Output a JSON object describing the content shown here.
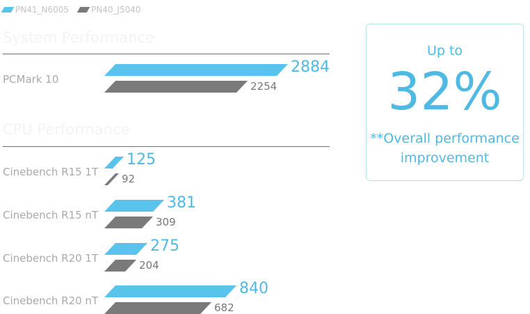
{
  "legend": [
    {
      "label": "PN41_N6005",
      "color": "#5ac3ec"
    },
    {
      "label": "PN40_J5040",
      "color": "#7a7a7a"
    }
  ],
  "callout": {
    "top": "Up to",
    "value": "32%",
    "note_line1": "**Overall performance",
    "note_line2": "improvement"
  },
  "chart_data": {
    "type": "bar",
    "orientation": "horizontal",
    "series_names": [
      "PN41_N6005",
      "PN40_J5040"
    ],
    "colors": [
      "#5ac3ec",
      "#7a7a7a"
    ],
    "sections": [
      {
        "title": "System Performance",
        "categories": [
          "PCMark 10"
        ],
        "series": [
          {
            "name": "PN41_N6005",
            "values": [
              2884
            ]
          },
          {
            "name": "PN40_J5040",
            "values": [
              2254
            ]
          }
        ]
      },
      {
        "title": "CPU Performance",
        "categories": [
          "Cinebench R15 1T",
          "Cinebench R15 nT",
          "Cinebench R20 1T",
          "Cinebench R20 nT"
        ],
        "series": [
          {
            "name": "PN41_N6005",
            "values": [
              125,
              381,
              275,
              840
            ]
          },
          {
            "name": "PN40_J5040",
            "values": [
              92,
              309,
              204,
              682
            ]
          }
        ]
      }
    ]
  }
}
